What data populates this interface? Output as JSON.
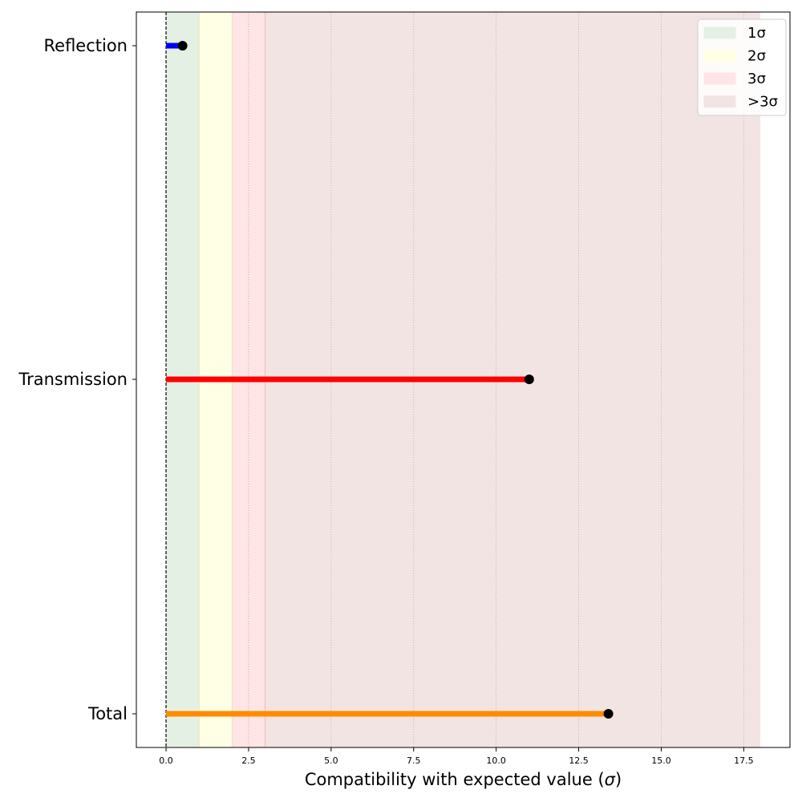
{
  "chart_data": {
    "type": "lollipop",
    "title": "",
    "xlabel": "Compatibility with expected value (",
    "xlabel_symbol": "σ",
    "xlabel_suffix": ")",
    "xlim": [
      -0.9,
      18.9
    ],
    "xticks": [
      0.0,
      2.5,
      5.0,
      7.5,
      10.0,
      12.5,
      15.0,
      17.5
    ],
    "xtick_labels": [
      "0.0",
      "2.5",
      "5.0",
      "7.5",
      "10.0",
      "12.5",
      "15.0",
      "17.5"
    ],
    "vertical_grid": "dotted",
    "reference_line": 0,
    "categories": [
      "Reflection",
      "Transmission",
      "Total"
    ],
    "values": [
      0.5,
      11.0,
      13.4
    ],
    "colors": [
      "#0000ff",
      "#ff0000",
      "#ff8c00"
    ],
    "marker_color": "#000000",
    "bands": [
      {
        "label": "1σ",
        "from": 0,
        "to": 1,
        "color": "#e5f0e5"
      },
      {
        "label": "2σ",
        "from": 1,
        "to": 2,
        "color": "#ffffe5"
      },
      {
        "label": "3σ",
        "from": 2,
        "to": 3,
        "color": "#ffe5e5"
      },
      {
        "label": ">3σ",
        "from": 3,
        "to": 18,
        "color": "#f3e4e4"
      }
    ],
    "legend_position": "top-right"
  }
}
